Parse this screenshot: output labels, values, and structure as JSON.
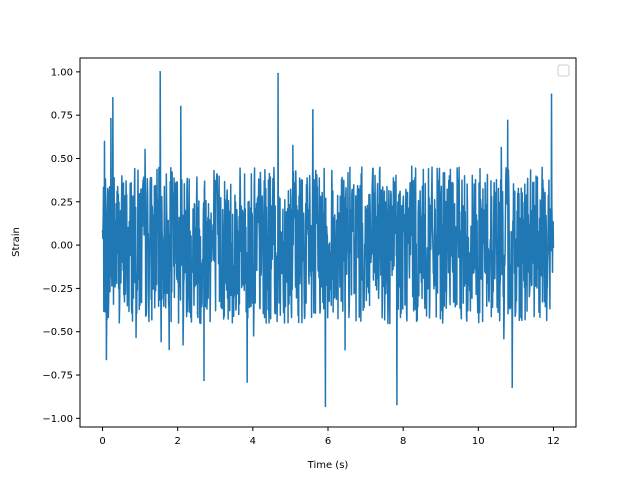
{
  "chart_data": {
    "type": "line",
    "title": "",
    "xlabel": "Time (s)",
    "ylabel": "Strain",
    "xlim": [
      -0.6,
      12.6
    ],
    "ylim": [
      -1.05,
      1.08
    ],
    "xticks": [
      0,
      2,
      4,
      6,
      8,
      10,
      12
    ],
    "xtick_labels": [
      "0",
      "2",
      "4",
      "6",
      "8",
      "10",
      "12"
    ],
    "yticks": [
      -1.0,
      -0.75,
      -0.5,
      -0.25,
      0.0,
      0.25,
      0.5,
      0.75,
      1.0
    ],
    "ytick_labels": [
      "−1.00",
      "−0.75",
      "−0.50",
      "−0.25",
      "0.00",
      "0.25",
      "0.50",
      "0.75",
      "1.00"
    ],
    "grid": false,
    "legend": {
      "position": "top-right",
      "entries": []
    },
    "line_color": "#1f77b4",
    "series": [
      {
        "x_range": [
          0.0,
          12.0
        ],
        "typical_amplitude": [
          -0.45,
          0.45
        ],
        "peaks": [
          {
            "x": 1.53,
            "y": 1.0
          },
          {
            "x": 4.67,
            "y": 0.99
          },
          {
            "x": 0.27,
            "y": 0.85
          },
          {
            "x": 11.95,
            "y": 0.87
          },
          {
            "x": 5.93,
            "y": -0.93
          },
          {
            "x": 7.83,
            "y": -0.92
          },
          {
            "x": 10.9,
            "y": -0.82
          },
          {
            "x": 2.7,
            "y": -0.78
          },
          {
            "x": 3.85,
            "y": -0.79
          },
          {
            "x": 0.1,
            "y": -0.66
          },
          {
            "x": 0.22,
            "y": 0.73
          },
          {
            "x": 2.08,
            "y": 0.8
          },
          {
            "x": 5.6,
            "y": 0.78
          },
          {
            "x": 10.78,
            "y": 0.72
          }
        ]
      }
    ]
  }
}
